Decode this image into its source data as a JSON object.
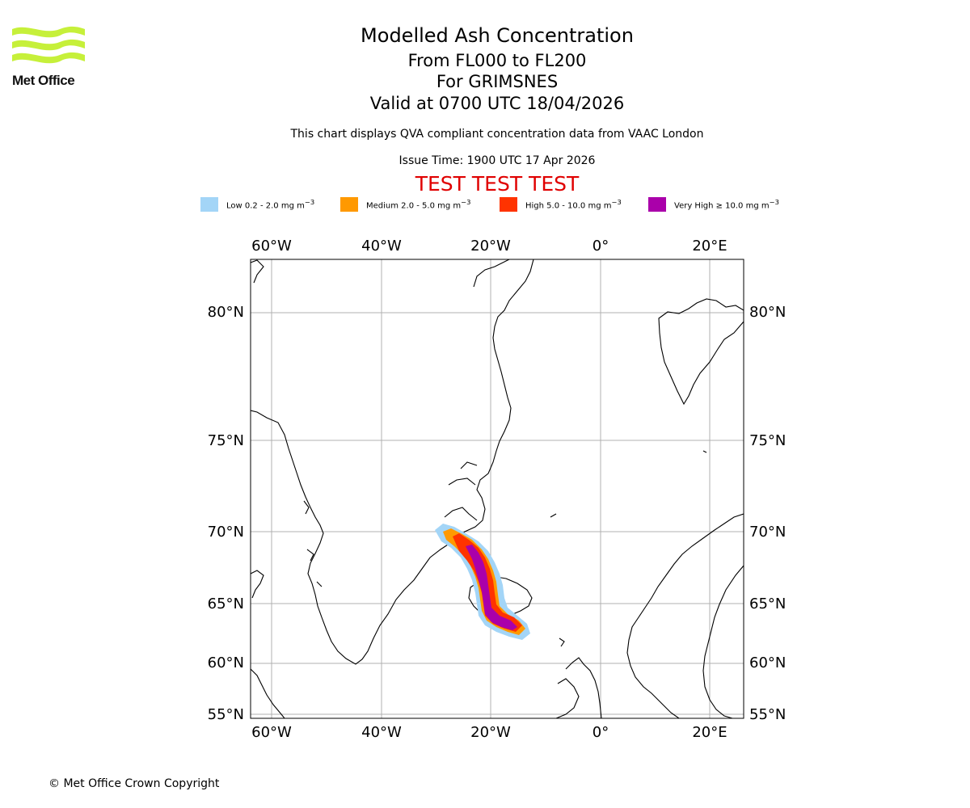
{
  "logo": {
    "name": "Met Office"
  },
  "titles": {
    "main": "Modelled Ash Concentration",
    "levels": "From FL000 to FL200",
    "volcano": "For GRIMSNES",
    "valid": "Valid at 0700 UTC 18/04/2026",
    "note": "This chart displays QVA compliant concentration data from VAAC London",
    "issue": "Issue Time: 1900 UTC 17 Apr 2026",
    "test": "TEST TEST TEST"
  },
  "legend": [
    {
      "label": "Low 0.2 - 2.0 mg m",
      "sup": "−3",
      "color": "#a3d5f7"
    },
    {
      "label": "Medium 2.0 - 5.0 mg m",
      "sup": "−3",
      "color": "#ff9900"
    },
    {
      "label": "High 5.0 - 10.0 mg m",
      "sup": "−3",
      "color": "#ff3300"
    },
    {
      "label": "Very High ≥ 10.0 mg m",
      "sup": "−3",
      "color": "#aa00aa"
    }
  ],
  "map": {
    "lon_labels": [
      "60°W",
      "40°W",
      "20°W",
      "0°",
      "20°E"
    ],
    "lat_labels": [
      "80°N",
      "75°N",
      "70°N",
      "65°N",
      "60°N",
      "55°N"
    ]
  },
  "footer": {
    "copyright": "© Met Office Crown Copyright"
  }
}
